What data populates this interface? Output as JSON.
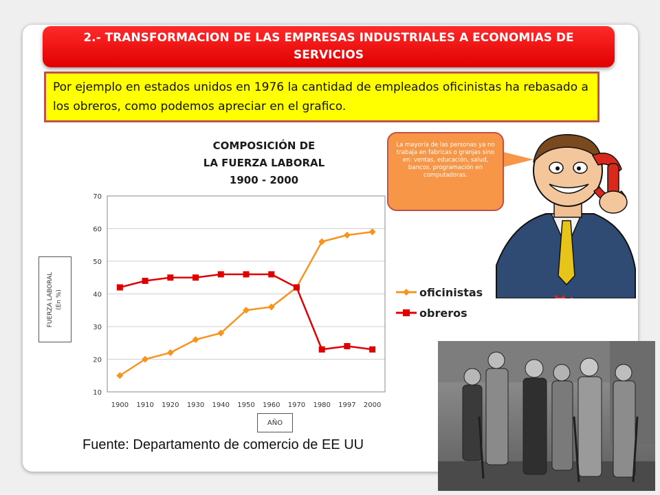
{
  "slide": {
    "title": "2.- TRANSFORMACION DE LAS EMPRESAS INDUSTRIALES A ECONOMIAS DE SERVICIOS",
    "intro": "Por ejemplo en estados unidos en 1976 la cantidad de empleados oficinistas ha rebasado a los obreros, como podemos apreciar en el grafico.",
    "bubble_text": "La mayoría de las personas ya no trabaja en fabricas o granjas sino en: ventas, educación, salud, bancos, programación en computadoras.",
    "source": "Fuente: Departamento de comercio de EE UU"
  },
  "chart_data": {
    "type": "line",
    "title_lines": [
      "COMPOSICIÓN DE",
      "LA FUERZA LABORAL",
      "1900 - 2000"
    ],
    "ylabel_lines": [
      "FUERZA LABORAL",
      "(En %)"
    ],
    "xlabel": "AÑO",
    "categories": [
      "1900",
      "1910",
      "1920",
      "1930",
      "1940",
      "1950",
      "1960",
      "1970",
      "1980",
      "1997",
      "2000"
    ],
    "ylim": [
      10,
      70
    ],
    "yticks": [
      "10",
      "20",
      "30",
      "40",
      "50",
      "60",
      "70"
    ],
    "grid": true,
    "legend_position": "right",
    "series": [
      {
        "name": "oficinistas",
        "color": "#f7941d",
        "marker": "diamond",
        "values": [
          15,
          20,
          22,
          26,
          28,
          35,
          36,
          42,
          56,
          58,
          59
        ]
      },
      {
        "name": "obreros",
        "color": "#e00000",
        "marker": "square",
        "values": [
          42,
          44,
          45,
          45,
          46,
          46,
          46,
          42,
          23,
          24,
          23
        ]
      }
    ]
  },
  "icons": {
    "cartoon": "man-on-phone-illustration",
    "photo": "workers-group-photo"
  }
}
